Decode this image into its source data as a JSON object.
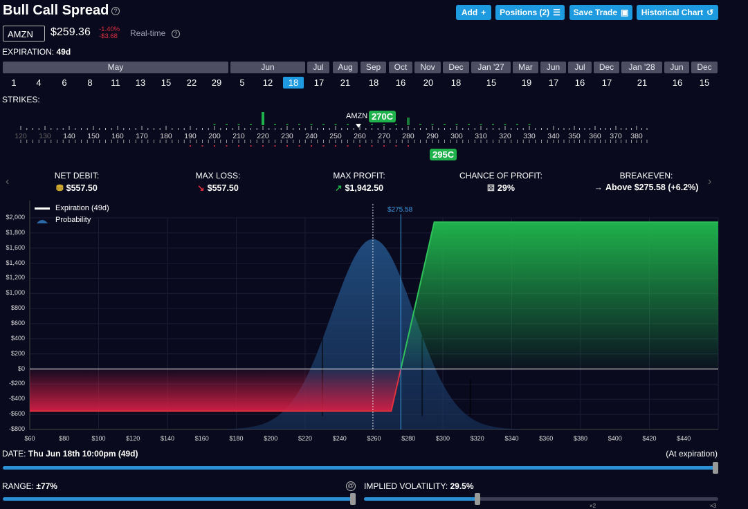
{
  "header": {
    "title": "Bull Call Spread",
    "buttons": [
      {
        "label": "Add",
        "icon": "+"
      },
      {
        "label": "Positions (2)",
        "icon": "list-icon"
      },
      {
        "label": "Save Trade",
        "icon": "save-icon"
      },
      {
        "label": "Historical Chart",
        "icon": "history-icon"
      }
    ]
  },
  "ticker": {
    "symbol": "AMZN",
    "price": "$259.36",
    "change_pct": "-1.40%",
    "change_abs": "-$3.68",
    "mode": "Real-time"
  },
  "expiration": {
    "label": "EXPIRATION:",
    "value": "49d",
    "months": [
      {
        "label": "May"
      },
      {
        "label": "Jun"
      },
      {
        "label": "Jul"
      },
      {
        "label": "Aug"
      },
      {
        "label": "Sep"
      },
      {
        "label": "Oct"
      },
      {
        "label": "Nov"
      },
      {
        "label": "Dec"
      },
      {
        "label": "Jan '27"
      },
      {
        "label": "Mar"
      },
      {
        "label": "Jun"
      },
      {
        "label": "Jul"
      },
      {
        "label": "Dec"
      },
      {
        "label": "Jan '28"
      },
      {
        "label": "Jun"
      },
      {
        "label": "Dec"
      }
    ],
    "days": [
      "1",
      "4",
      "6",
      "8",
      "11",
      "13",
      "15",
      "22",
      "29",
      "5",
      "12",
      "18",
      "17",
      "21",
      "18",
      "16",
      "20",
      "18",
      "15",
      "19",
      "17",
      "16",
      "17",
      "21",
      "16",
      "15"
    ],
    "selected_day_index": 11
  },
  "strikes": {
    "label": "STRIKES:",
    "underlying": "AMZN",
    "labels": [
      "120",
      "130",
      "140",
      "150",
      "160",
      "170",
      "180",
      "190",
      "200",
      "210",
      "220",
      "230",
      "240",
      "250",
      "260",
      "270",
      "280",
      "290",
      "300",
      "310",
      "320",
      "330",
      "340",
      "350",
      "360",
      "370",
      "380"
    ],
    "dim_labels": [
      "120",
      "130"
    ],
    "long_leg": "270C",
    "short_leg": "295C"
  },
  "metrics": [
    {
      "label": "NET DEBIT:",
      "value": "$557.50",
      "icon": "coins-icon",
      "icon_char": "⛃"
    },
    {
      "label": "MAX LOSS:",
      "value": "$557.50",
      "icon": "arrow-down-icon",
      "icon_char": "↘"
    },
    {
      "label": "MAX PROFIT:",
      "value": "$1,942.50",
      "icon": "arrow-up-icon",
      "icon_char": "↗"
    },
    {
      "label": "CHANCE OF PROFIT:",
      "value": "29%",
      "icon": "dice-icon",
      "icon_char": "⚄"
    },
    {
      "label": "BREAKEVEN:",
      "value": "Above $275.58 (+6.2%)",
      "icon": "arrow-right-icon",
      "icon_char": "→"
    }
  ],
  "chart_data": {
    "type": "area",
    "legend": [
      "Expiration (49d)",
      "Probability"
    ],
    "breakeven_label": "$275.58",
    "breakeven_x": 275.58,
    "current_price_x": 259.36,
    "ylim": [
      -800,
      2000
    ],
    "xlim": [
      60,
      460
    ],
    "y_ticks": [
      2000,
      1800,
      1600,
      1400,
      1200,
      1000,
      800,
      600,
      400,
      200,
      0,
      -200,
      -400,
      -600,
      -800
    ],
    "y_tick_labels": [
      "$2,000",
      "$1,800",
      "$1,600",
      "$1,400",
      "$1,200",
      "$1,000",
      "$800",
      "$600",
      "$400",
      "$200",
      "$0",
      "-$200",
      "-$400",
      "-$600",
      "-$800"
    ],
    "x_ticks": [
      60,
      80,
      100,
      120,
      140,
      160,
      180,
      200,
      220,
      240,
      260,
      280,
      300,
      320,
      340,
      360,
      380,
      400,
      420,
      440
    ],
    "x_tick_labels": [
      "$60",
      "$80",
      "$100",
      "$120",
      "$140",
      "$160",
      "$180",
      "$200",
      "$220",
      "$240",
      "$260",
      "$280",
      "$300",
      "$320",
      "$340",
      "$360",
      "$380",
      "$400",
      "$420",
      "$440"
    ],
    "series": [
      {
        "name": "Expiration (49d)",
        "x": [
          60,
          270,
          295,
          460
        ],
        "y": [
          -557.5,
          -557.5,
          1942.5,
          1942.5
        ]
      }
    ],
    "colors": {
      "profit": "#1fb14b",
      "loss": "#d41f45",
      "probability": "#1e4a7a",
      "breakeven": "#3b9ae0"
    }
  },
  "footer": {
    "date_label": "DATE:",
    "date_value": "Thu Jun 18th 10:00pm (49d)",
    "date_status": "(At expiration)",
    "date_slider": 1.0,
    "range_label": "RANGE:",
    "range_value": "±77%",
    "range_slider": 1.0,
    "iv_label": "IMPLIED VOLATILITY:",
    "iv_value": "29.5%",
    "iv_slider": 0.32,
    "iv_marks": [
      "×2",
      "×3"
    ]
  }
}
